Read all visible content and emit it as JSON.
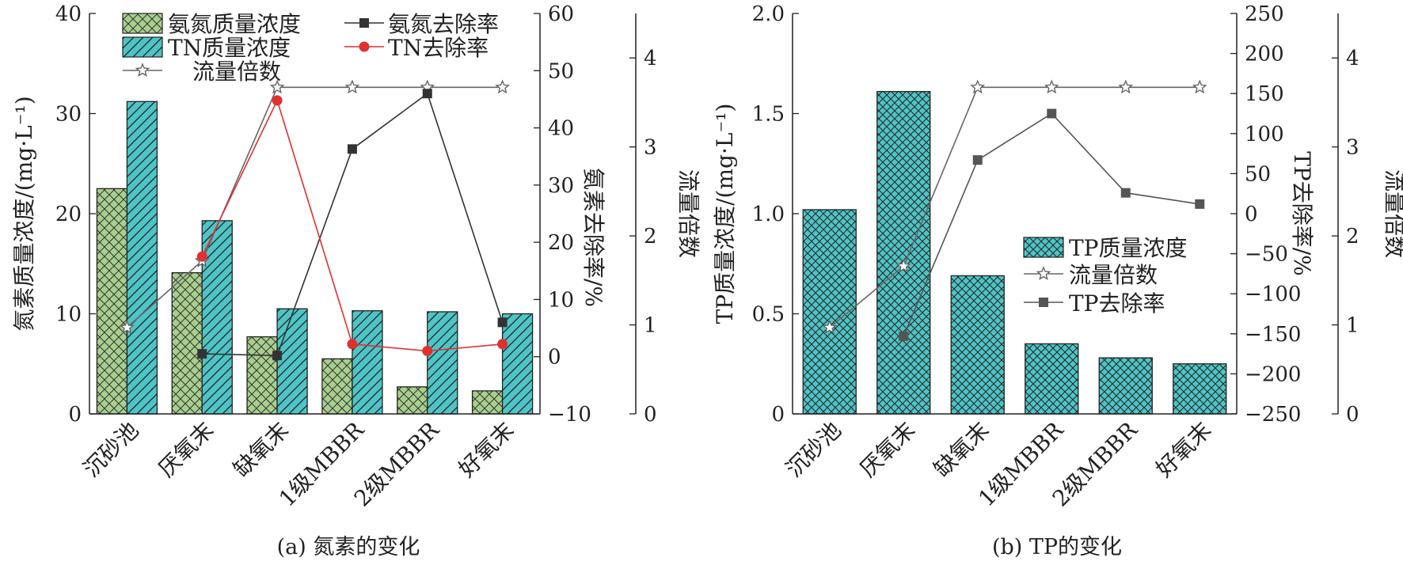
{
  "chart_data": [
    {
      "type": "bar",
      "caption": "(a) 氮素的变化",
      "categories": [
        "沉砂池",
        "厌氧末",
        "缺氧末",
        "1级MBBR",
        "2级MBBR",
        "好氧末"
      ],
      "ylabel_left": "氮素质量浓度/(mg·L⁻¹)",
      "ylabel_right1": "氨素去除率/%",
      "ylabel_right2": "流量倍数",
      "ylim_left": [
        0,
        40
      ],
      "ylim_right1": [
        -10,
        60
      ],
      "ylim_right2": [
        0,
        4.5
      ],
      "yticks_left": [
        "0",
        "10",
        "20",
        "30",
        "40"
      ],
      "yticks_right1": [
        "−10",
        "0",
        "10",
        "20",
        "30",
        "40",
        "50",
        "60"
      ],
      "yticks_right2": [
        "0",
        "1",
        "2",
        "3",
        "4"
      ],
      "series": [
        {
          "name": "氨氮质量浓度",
          "kind": "bar",
          "axis": "left",
          "color": "#a8d08d",
          "pattern": "crosshatch",
          "values": [
            22.5,
            14.1,
            7.7,
            5.5,
            2.7,
            2.3
          ]
        },
        {
          "name": "TN质量浓度",
          "kind": "bar",
          "axis": "left",
          "color": "#4fc4c6",
          "pattern": "diagonal",
          "values": [
            31.2,
            19.3,
            10.5,
            10.3,
            10.2,
            10.0
          ]
        },
        {
          "name": "流量倍数",
          "kind": "line",
          "axis": "right2",
          "color": "#666666",
          "marker": "star",
          "values": [
            0.97,
            1.72,
            3.67,
            3.67,
            3.67,
            3.67
          ]
        },
        {
          "name": "氨氮去除率",
          "kind": "line",
          "axis": "right1",
          "color": "#333333",
          "marker": "square",
          "values": [
            null,
            0.5,
            0.2,
            36.3,
            46.0,
            6.0
          ]
        },
        {
          "name": "TN去除率",
          "kind": "line",
          "axis": "right1",
          "color": "#e03030",
          "marker": "circle",
          "values": [
            null,
            17.5,
            44.8,
            2.2,
            1.0,
            2.2
          ]
        }
      ],
      "legend": [
        "氨氮质量浓度",
        "TN质量浓度",
        "流量倍数",
        "氨氮去除率",
        "TN去除率"
      ]
    },
    {
      "type": "bar",
      "caption": "(b) TP的变化",
      "categories": [
        "沉砂池",
        "厌氧末",
        "缺氧末",
        "1级MBBR",
        "2级MBBR",
        "好氧末"
      ],
      "ylabel_left": "TP质量浓度/(mg·L⁻¹)",
      "ylabel_right1": "TP去除率/%",
      "ylabel_right2": "流量倍数",
      "ylim_left": [
        0,
        2.0
      ],
      "ylim_right1": [
        -250,
        250
      ],
      "ylim_right2": [
        0,
        4.5
      ],
      "yticks_left": [
        "0",
        "0.5",
        "1.0",
        "1.5",
        "2.0"
      ],
      "yticks_right1": [
        "−250",
        "−200",
        "−150",
        "−100",
        "−50",
        "0",
        "50",
        "100",
        "150",
        "200",
        "250"
      ],
      "yticks_right2": [
        "0",
        "1",
        "2",
        "3",
        "4"
      ],
      "series": [
        {
          "name": "TP质量浓度",
          "kind": "bar",
          "axis": "left",
          "color": "#4fc4c6",
          "pattern": "crosshatch",
          "values": [
            1.02,
            1.61,
            0.69,
            0.35,
            0.28,
            0.25
          ]
        },
        {
          "name": "流量倍数",
          "kind": "line",
          "axis": "right2",
          "color": "#666666",
          "marker": "star",
          "values": [
            0.97,
            1.66,
            3.67,
            3.67,
            3.67,
            3.67
          ]
        },
        {
          "name": "TP去除率",
          "kind": "line",
          "axis": "right1",
          "color": "#555555",
          "marker": "square",
          "values": [
            null,
            -153,
            67,
            125,
            26,
            12
          ]
        }
      ],
      "legend": [
        "TP质量浓度",
        "流量倍数",
        "TP去除率"
      ]
    }
  ]
}
